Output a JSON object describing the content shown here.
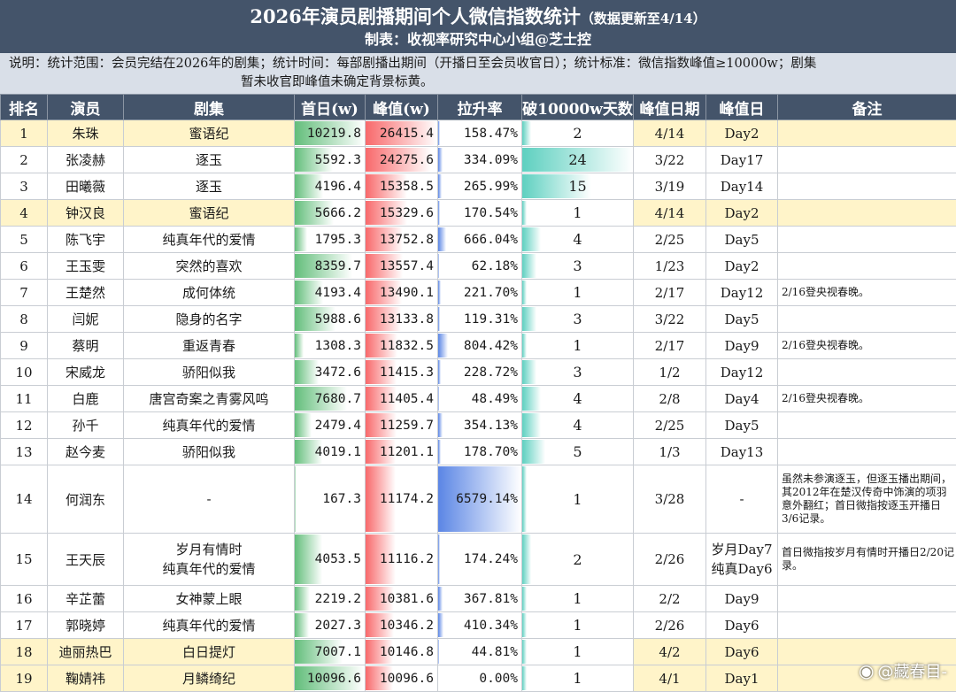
{
  "header": {
    "title": "2026年演员剧播期间个人微信指数统计",
    "title_note": "（数据更新至4/14）",
    "subtitle": "制表：收视率研究中心小组@芝士控"
  },
  "note": {
    "line1": "说明：统计范围：会员完结在2026年的剧集；统计时间：每部剧播出期间（开播日至会员收官日）；统计标准：微信指数峰值≥10000w；剧集",
    "line2": "暂未收官即峰值未确定背景标黄。"
  },
  "columns": [
    "排名",
    "演员",
    "剧集",
    "首日(w)",
    "峰值(w)",
    "拉升率",
    "破10000w天数",
    "峰值日期",
    "峰值日",
    "备注"
  ],
  "rows": [
    {
      "rank": "1",
      "actor": "朱珠",
      "drama": "蜜语纪",
      "first": "10219.8",
      "peak": "26415.4",
      "rise": "158.47%",
      "days": "2",
      "date": "4/14",
      "peakday": "Day2",
      "remark": "",
      "first_v": 10219.8,
      "peak_v": 26415.4,
      "rise_v": 158.47,
      "days_v": 2,
      "yellow": true
    },
    {
      "rank": "2",
      "actor": "张凌赫",
      "drama": "逐玉",
      "first": "5592.3",
      "peak": "24275.6",
      "rise": "334.09%",
      "days": "24",
      "date": "3/22",
      "peakday": "Day17",
      "remark": "",
      "first_v": 5592.3,
      "peak_v": 24275.6,
      "rise_v": 334.09,
      "days_v": 24,
      "yellow": false
    },
    {
      "rank": "3",
      "actor": "田曦薇",
      "drama": "逐玉",
      "first": "4196.4",
      "peak": "15358.5",
      "rise": "265.99%",
      "days": "15",
      "date": "3/19",
      "peakday": "Day14",
      "remark": "",
      "first_v": 4196.4,
      "peak_v": 15358.5,
      "rise_v": 265.99,
      "days_v": 15,
      "yellow": false
    },
    {
      "rank": "4",
      "actor": "钟汉良",
      "drama": "蜜语纪",
      "first": "5666.2",
      "peak": "15329.6",
      "rise": "170.54%",
      "days": "1",
      "date": "4/14",
      "peakday": "Day2",
      "remark": "",
      "first_v": 5666.2,
      "peak_v": 15329.6,
      "rise_v": 170.54,
      "days_v": 1,
      "yellow": true
    },
    {
      "rank": "5",
      "actor": "陈飞宇",
      "drama": "纯真年代的爱情",
      "first": "1795.3",
      "peak": "13752.8",
      "rise": "666.04%",
      "days": "4",
      "date": "2/25",
      "peakday": "Day5",
      "remark": "",
      "first_v": 1795.3,
      "peak_v": 13752.8,
      "rise_v": 666.04,
      "days_v": 4,
      "yellow": false
    },
    {
      "rank": "6",
      "actor": "王玉雯",
      "drama": "突然的喜欢",
      "first": "8359.7",
      "peak": "13557.4",
      "rise": "62.18%",
      "days": "3",
      "date": "1/23",
      "peakday": "Day2",
      "remark": "",
      "first_v": 8359.7,
      "peak_v": 13557.4,
      "rise_v": 62.18,
      "days_v": 3,
      "yellow": false
    },
    {
      "rank": "7",
      "actor": "王楚然",
      "drama": "成何体统",
      "first": "4193.4",
      "peak": "13490.1",
      "rise": "221.70%",
      "days": "1",
      "date": "2/17",
      "peakday": "Day12",
      "remark": "2/16登央视春晚。",
      "first_v": 4193.4,
      "peak_v": 13490.1,
      "rise_v": 221.7,
      "days_v": 1,
      "yellow": false
    },
    {
      "rank": "8",
      "actor": "闫妮",
      "drama": "隐身的名字",
      "first": "5988.6",
      "peak": "13133.8",
      "rise": "119.31%",
      "days": "3",
      "date": "3/22",
      "peakday": "Day5",
      "remark": "",
      "first_v": 5988.6,
      "peak_v": 13133.8,
      "rise_v": 119.31,
      "days_v": 3,
      "yellow": false
    },
    {
      "rank": "9",
      "actor": "蔡明",
      "drama": "重返青春",
      "first": "1308.3",
      "peak": "11832.5",
      "rise": "804.42%",
      "days": "1",
      "date": "2/17",
      "peakday": "Day9",
      "remark": "2/16登央视春晚。",
      "first_v": 1308.3,
      "peak_v": 11832.5,
      "rise_v": 804.42,
      "days_v": 1,
      "yellow": false
    },
    {
      "rank": "10",
      "actor": "宋威龙",
      "drama": "骄阳似我",
      "first": "3472.6",
      "peak": "11415.3",
      "rise": "228.72%",
      "days": "3",
      "date": "1/2",
      "peakday": "Day12",
      "remark": "",
      "first_v": 3472.6,
      "peak_v": 11415.3,
      "rise_v": 228.72,
      "days_v": 3,
      "yellow": false
    },
    {
      "rank": "11",
      "actor": "白鹿",
      "drama": "唐宫奇案之青雾风鸣",
      "first": "7680.7",
      "peak": "11405.4",
      "rise": "48.49%",
      "days": "4",
      "date": "2/8",
      "peakday": "Day4",
      "remark": "2/16登央视春晚。",
      "first_v": 7680.7,
      "peak_v": 11405.4,
      "rise_v": 48.49,
      "days_v": 4,
      "yellow": false
    },
    {
      "rank": "12",
      "actor": "孙千",
      "drama": "纯真年代的爱情",
      "first": "2479.4",
      "peak": "11259.7",
      "rise": "354.13%",
      "days": "4",
      "date": "2/25",
      "peakday": "Day5",
      "remark": "",
      "first_v": 2479.4,
      "peak_v": 11259.7,
      "rise_v": 354.13,
      "days_v": 4,
      "yellow": false
    },
    {
      "rank": "13",
      "actor": "赵今麦",
      "drama": "骄阳似我",
      "first": "4019.1",
      "peak": "11201.1",
      "rise": "178.70%",
      "days": "5",
      "date": "1/3",
      "peakday": "Day13",
      "remark": "",
      "first_v": 4019.1,
      "peak_v": 11201.1,
      "rise_v": 178.7,
      "days_v": 5,
      "yellow": false
    },
    {
      "rank": "14",
      "actor": "何润东",
      "drama": "-",
      "first": "167.3",
      "peak": "11174.2",
      "rise": "6579.14%",
      "days": "1",
      "date": "3/28",
      "peakday": "-",
      "remark": "虽然未参演逐玉，但逐玉播出期间，其2012年在楚汉传奇中饰演的项羽意外翻红；首日微指按逐玉开播日3/6记录。",
      "first_v": 167.3,
      "peak_v": 11174.2,
      "rise_v": 6579.14,
      "days_v": 1,
      "yellow": false
    },
    {
      "rank": "15",
      "actor": "王天辰",
      "drama": "岁月有情时\n纯真年代的爱情",
      "first": "4053.5",
      "peak": "11116.2",
      "rise": "174.24%",
      "days": "2",
      "date": "2/26",
      "peakday": "岁月Day7\n纯真Day6",
      "remark": "首日微指按岁月有情时开播日2/20记录。",
      "first_v": 4053.5,
      "peak_v": 11116.2,
      "rise_v": 174.24,
      "days_v": 2,
      "yellow": false
    },
    {
      "rank": "16",
      "actor": "辛芷蕾",
      "drama": "女神蒙上眼",
      "first": "2219.2",
      "peak": "10381.6",
      "rise": "367.81%",
      "days": "1",
      "date": "2/2",
      "peakday": "Day9",
      "remark": "",
      "first_v": 2219.2,
      "peak_v": 10381.6,
      "rise_v": 367.81,
      "days_v": 1,
      "yellow": false
    },
    {
      "rank": "17",
      "actor": "郭晓婷",
      "drama": "纯真年代的爱情",
      "first": "2027.3",
      "peak": "10346.2",
      "rise": "410.34%",
      "days": "1",
      "date": "2/26",
      "peakday": "Day6",
      "remark": "",
      "first_v": 2027.3,
      "peak_v": 10346.2,
      "rise_v": 410.34,
      "days_v": 1,
      "yellow": false
    },
    {
      "rank": "18",
      "actor": "迪丽热巴",
      "drama": "白日提灯",
      "first": "7007.1",
      "peak": "10146.8",
      "rise": "44.81%",
      "days": "1",
      "date": "4/2",
      "peakday": "Day6",
      "remark": "",
      "first_v": 7007.1,
      "peak_v": 10146.8,
      "rise_v": 44.81,
      "days_v": 1,
      "yellow": true
    },
    {
      "rank": "19",
      "actor": "鞠婧祎",
      "drama": "月鳞绮纪",
      "first": "10096.6",
      "peak": "10096.6",
      "rise": "0.00%",
      "days": "1",
      "date": "4/1",
      "peakday": "Day1",
      "remark": "",
      "first_v": 10096.6,
      "peak_v": 10096.6,
      "rise_v": 0.0,
      "days_v": 1,
      "yellow": true
    }
  ],
  "scale_max": {
    "first": 10219.8,
    "peak": 26415.4,
    "rise": 6579.14,
    "days": 24
  },
  "watermark": {
    "icon": "weibo-logo-icon",
    "text": "@藏春目-"
  },
  "colors": {
    "header": "#44546a",
    "note_bg": "#d9dfe8",
    "yellow_row": "#fff4c9",
    "first_bar": "#63be7b",
    "peak_bar": "#f8696b",
    "rise_bar": "#5b86e5",
    "days_bar": "#5ed0c0"
  }
}
